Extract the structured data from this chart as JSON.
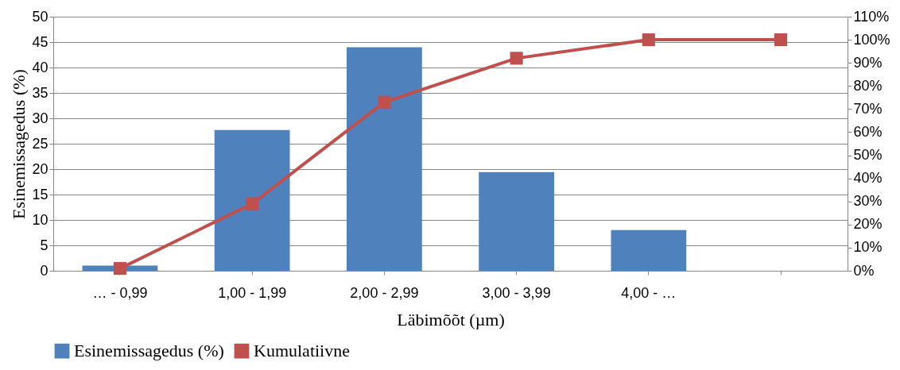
{
  "chart_data": {
    "type": "bar",
    "xlabel": "Läbimõõt (µm)",
    "ylabel": "Esinemissagedus (%)",
    "categories": [
      "… - 0,99",
      "1,00 - 1,99",
      "2,00 - 2,99",
      "3,00 - 3,99",
      "4,00 - …",
      null
    ],
    "series": [
      {
        "name": "Esinemissagedus (%)",
        "color": "#4f81bd",
        "values": [
          1,
          27.7,
          44,
          19.4,
          8,
          null
        ]
      },
      {
        "name": "Kumulatiivne",
        "color": "#c0504d",
        "type": "line",
        "axis": "y2",
        "values": [
          1,
          29,
          73,
          92,
          100,
          100
        ]
      }
    ],
    "ylim": [
      0,
      50
    ],
    "yticks": [
      0,
      5,
      10,
      15,
      20,
      25,
      30,
      35,
      40,
      45,
      50
    ],
    "y2lim": [
      0,
      110
    ],
    "y2ticks": [
      {
        "value": 0,
        "label": "0%"
      },
      {
        "value": 10,
        "label": "10%"
      },
      {
        "value": 20,
        "label": "20%"
      },
      {
        "value": 30,
        "label": "30%"
      },
      {
        "value": 40,
        "label": "40%"
      },
      {
        "value": 50,
        "label": "50%"
      },
      {
        "value": 60,
        "label": "60%"
      },
      {
        "value": 70,
        "label": "70%"
      },
      {
        "value": 80,
        "label": "80%"
      },
      {
        "value": 90,
        "label": "90%"
      },
      {
        "value": 100,
        "label": "100%"
      },
      {
        "value": 110,
        "label": "110%"
      }
    ],
    "grid": "y",
    "legend": "bottom",
    "marker": "square",
    "line_style": "solid"
  }
}
